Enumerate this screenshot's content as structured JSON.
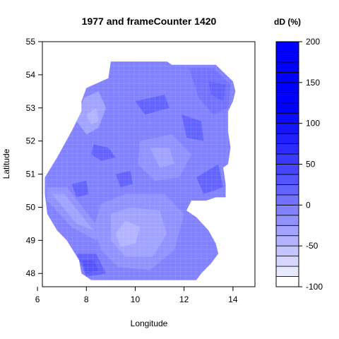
{
  "chart_data": {
    "type": "heatmap",
    "subtype": "filled-contour map",
    "title": "1977 and frameCounter 1420",
    "xlabel": "Longitude",
    "ylabel": "Latitude",
    "xlim": [
      6.2,
      14.9
    ],
    "ylim": [
      47.6,
      55.0
    ],
    "x_ticks": [
      "6",
      "8",
      "10",
      "12",
      "14"
    ],
    "y_ticks": [
      "48",
      "49",
      "50",
      "51",
      "52",
      "53",
      "54",
      "55"
    ],
    "grid": false,
    "legend": {
      "title": "dD (%)",
      "placement": "right",
      "levels": [
        -100,
        -87.5,
        -75,
        -62.5,
        -50,
        -37.5,
        -25,
        -12.5,
        0,
        12.5,
        25,
        37.5,
        50,
        62.5,
        75,
        87.5,
        100,
        112.5,
        125,
        137.5,
        150,
        162.5,
        175,
        187.5,
        200
      ],
      "tick_labels": [
        "-100",
        "-50",
        "0",
        "50",
        "100",
        "150",
        "200"
      ],
      "colors": [
        "#ffffff",
        "#e8e8ff",
        "#d6d6ff",
        "#c4c4ff",
        "#b3b3ff",
        "#a2a2ff",
        "#9292ff",
        "#8282ff",
        "#7272ff",
        "#6363ff",
        "#5454ff",
        "#4646ff",
        "#3939ff",
        "#2c2cff",
        "#2020ff",
        "#1515ff",
        "#0b0bff",
        "#0000ff",
        "#0000ff",
        "#0000ff",
        "#0000ff",
        "#0000ff",
        "#0000ff",
        "#0000ff"
      ]
    },
    "region_outline": [
      [
        9.0,
        54.4
      ],
      [
        11.3,
        54.4
      ],
      [
        11.5,
        54.3
      ],
      [
        12.2,
        54.3
      ],
      [
        13.3,
        54.3
      ],
      [
        14.0,
        53.8
      ],
      [
        14.1,
        53.5
      ],
      [
        14.0,
        53.2
      ],
      [
        13.8,
        52.9
      ],
      [
        13.8,
        52.3
      ],
      [
        13.9,
        51.8
      ],
      [
        13.8,
        51.3
      ],
      [
        13.6,
        51.2
      ],
      [
        13.7,
        50.7
      ],
      [
        13.7,
        50.3
      ],
      [
        13.3,
        50.3
      ],
      [
        12.9,
        50.2
      ],
      [
        12.3,
        50.2
      ],
      [
        12.1,
        49.9
      ],
      [
        12.5,
        49.7
      ],
      [
        13.0,
        49.3
      ],
      [
        13.3,
        48.9
      ],
      [
        13.4,
        48.6
      ],
      [
        13.1,
        48.3
      ],
      [
        12.7,
        48.0
      ],
      [
        12.5,
        47.8
      ],
      [
        10.8,
        47.8
      ],
      [
        9.5,
        47.8
      ],
      [
        8.2,
        47.8
      ],
      [
        7.8,
        48.0
      ],
      [
        7.7,
        48.4
      ],
      [
        7.2,
        49.0
      ],
      [
        6.8,
        49.3
      ],
      [
        6.4,
        49.8
      ],
      [
        6.3,
        50.4
      ],
      [
        6.3,
        50.9
      ],
      [
        6.8,
        51.5
      ],
      [
        7.1,
        51.9
      ],
      [
        7.4,
        52.3
      ],
      [
        7.8,
        52.9
      ],
      [
        7.8,
        53.2
      ],
      [
        8.0,
        53.6
      ],
      [
        8.9,
        53.9
      ],
      [
        9.0,
        54.4
      ]
    ],
    "contour_regions": [
      {
        "level_band": [
          -12.5,
          0
        ],
        "polygon": [
          [
            9.3,
            54.3
          ],
          [
            11.3,
            54.3
          ],
          [
            11.2,
            53.8
          ],
          [
            10.2,
            53.6
          ],
          [
            9.6,
            53.7
          ]
        ]
      },
      {
        "level_band": [
          0,
          12.5
        ],
        "polygon": [
          [
            12.2,
            54.2
          ],
          [
            13.2,
            54.2
          ],
          [
            13.9,
            53.7
          ],
          [
            13.8,
            53.0
          ],
          [
            13.2,
            52.8
          ],
          [
            12.6,
            53.3
          ]
        ]
      },
      {
        "level_band": [
          12.5,
          25
        ],
        "polygon": [
          [
            13.0,
            53.8
          ],
          [
            13.7,
            53.7
          ],
          [
            13.6,
            53.2
          ],
          [
            13.1,
            53.4
          ]
        ]
      },
      {
        "level_band": [
          -37.5,
          -25
        ],
        "polygon": [
          [
            7.9,
            53.3
          ],
          [
            8.5,
            53.5
          ],
          [
            8.8,
            53.0
          ],
          [
            8.5,
            52.4
          ],
          [
            8.0,
            52.2
          ],
          [
            7.6,
            52.6
          ]
        ]
      },
      {
        "level_band": [
          -50,
          -37.5
        ],
        "polygon": [
          [
            8.0,
            52.8
          ],
          [
            8.4,
            53.0
          ],
          [
            8.5,
            52.6
          ],
          [
            8.2,
            52.5
          ]
        ]
      },
      {
        "level_band": [
          -25,
          -12.5
        ],
        "polygon": [
          [
            10.2,
            52.0
          ],
          [
            11.5,
            52.2
          ],
          [
            12.3,
            51.6
          ],
          [
            11.8,
            50.9
          ],
          [
            10.8,
            50.8
          ],
          [
            10.1,
            51.3
          ]
        ]
      },
      {
        "level_band": [
          -37.5,
          -25
        ],
        "polygon": [
          [
            10.6,
            51.8
          ],
          [
            11.4,
            51.8
          ],
          [
            11.6,
            51.3
          ],
          [
            11.0,
            51.2
          ]
        ]
      },
      {
        "level_band": [
          -25,
          -12.5
        ],
        "polygon": [
          [
            6.4,
            50.6
          ],
          [
            7.2,
            50.6
          ],
          [
            8.6,
            49.3
          ],
          [
            8.4,
            49.0
          ],
          [
            7.4,
            49.4
          ],
          [
            6.4,
            50.2
          ]
        ]
      },
      {
        "level_band": [
          -37.5,
          -25
        ],
        "polygon": [
          [
            6.6,
            50.4
          ],
          [
            7.1,
            50.4
          ],
          [
            8.3,
            49.3
          ],
          [
            7.6,
            49.5
          ]
        ]
      },
      {
        "level_band": [
          -25,
          -12.5
        ],
        "polygon": [
          [
            8.6,
            50.1
          ],
          [
            9.6,
            50.4
          ],
          [
            11.2,
            50.4
          ],
          [
            12.0,
            49.8
          ],
          [
            11.6,
            48.7
          ],
          [
            10.6,
            48.1
          ],
          [
            9.3,
            48.2
          ],
          [
            8.6,
            48.7
          ],
          [
            8.3,
            49.4
          ]
        ]
      },
      {
        "level_band": [
          -37.5,
          -25
        ],
        "polygon": [
          [
            9.0,
            49.8
          ],
          [
            9.8,
            50.0
          ],
          [
            11.0,
            49.9
          ],
          [
            11.3,
            49.2
          ],
          [
            10.7,
            48.5
          ],
          [
            9.6,
            48.5
          ],
          [
            9.0,
            49.0
          ]
        ]
      },
      {
        "level_band": [
          -50,
          -37.5
        ],
        "polygon": [
          [
            9.2,
            49.2
          ],
          [
            9.6,
            49.6
          ],
          [
            10.2,
            49.4
          ],
          [
            10.0,
            48.9
          ],
          [
            9.4,
            48.8
          ]
        ]
      },
      {
        "level_band": [
          12.5,
          25
        ],
        "polygon": [
          [
            8.3,
            51.9
          ],
          [
            8.9,
            51.8
          ],
          [
            9.2,
            51.5
          ],
          [
            8.6,
            51.4
          ],
          [
            8.2,
            51.6
          ]
        ]
      },
      {
        "level_band": [
          12.5,
          25
        ],
        "polygon": [
          [
            9.2,
            51.0
          ],
          [
            9.8,
            51.1
          ],
          [
            9.9,
            50.7
          ],
          [
            9.4,
            50.6
          ]
        ]
      },
      {
        "level_band": [
          12.5,
          25
        ],
        "polygon": [
          [
            7.4,
            50.7
          ],
          [
            8.0,
            50.8
          ],
          [
            8.1,
            50.4
          ],
          [
            7.6,
            50.3
          ]
        ]
      },
      {
        "level_band": [
          12.5,
          25
        ],
        "polygon": [
          [
            12.5,
            50.9
          ],
          [
            13.4,
            51.3
          ],
          [
            13.6,
            50.6
          ],
          [
            12.8,
            50.4
          ]
        ]
      },
      {
        "level_band": [
          12.5,
          25
        ],
        "polygon": [
          [
            11.9,
            52.8
          ],
          [
            12.7,
            52.6
          ],
          [
            12.8,
            52.0
          ],
          [
            12.1,
            52.1
          ]
        ]
      },
      {
        "level_band": [
          12.5,
          25
        ],
        "polygon": [
          [
            10.0,
            53.2
          ],
          [
            11.2,
            53.4
          ],
          [
            11.4,
            53.0
          ],
          [
            10.4,
            52.8
          ]
        ]
      },
      {
        "level_band": [
          12.5,
          25
        ],
        "polygon": [
          [
            7.6,
            48.6
          ],
          [
            8.4,
            48.6
          ],
          [
            8.8,
            48.0
          ],
          [
            8.0,
            47.9
          ]
        ]
      },
      {
        "level_band": [
          25,
          37.5
        ],
        "polygon": [
          [
            7.8,
            48.4
          ],
          [
            8.3,
            48.4
          ],
          [
            8.5,
            48.1
          ],
          [
            8.0,
            48.0
          ]
        ]
      }
    ]
  }
}
